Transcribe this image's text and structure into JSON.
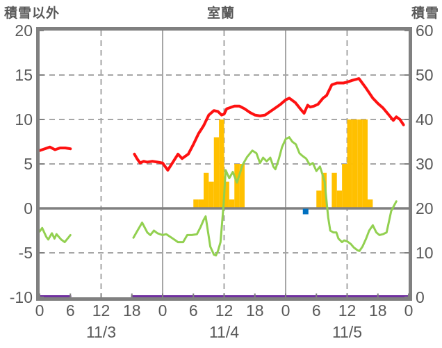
{
  "header": {
    "left_axis_title": "積雪以外",
    "chart_title": "室蘭",
    "right_axis_title": "積雪"
  },
  "colors": {
    "red": "#fe1111",
    "green": "#92d050",
    "orange": "#ffc000",
    "purple": "#7030a0",
    "blue": "#0070c0",
    "grid": "#a6a6a6",
    "axis": "#808080",
    "text": "#595959"
  },
  "chart_data": {
    "type": "line",
    "title": "室蘭",
    "left_axis": {
      "title": "積雪以外",
      "min": -10,
      "max": 20,
      "ticks": [
        20,
        15,
        10,
        5,
        0,
        -5,
        -10
      ]
    },
    "right_axis": {
      "title": "積雪",
      "min": 0,
      "max": 60,
      "ticks": [
        60,
        50,
        40,
        30,
        20,
        10,
        0
      ]
    },
    "x_axis": {
      "range_hours": [
        0,
        72
      ],
      "hour_ticks": [
        0,
        6,
        12,
        18,
        24,
        30,
        36,
        42,
        48,
        54,
        60,
        66,
        72
      ],
      "hour_labels": [
        "0",
        "6",
        "12",
        "18",
        "0",
        "6",
        "12",
        "18",
        "0",
        "6",
        "12",
        "18",
        "0"
      ],
      "date_labels": [
        {
          "label": "11/3",
          "hour": 12
        },
        {
          "label": "11/4",
          "hour": 36
        },
        {
          "label": "11/5",
          "hour": 60
        }
      ],
      "solid_gridline_hours": [
        24,
        48
      ],
      "dashed_gridline_hours": [
        12,
        36,
        60
      ]
    },
    "grid": {
      "dashed_left_values": [
        15,
        10,
        5,
        -5
      ],
      "solid_left_values": [
        0
      ]
    },
    "legend": "none",
    "series": [
      {
        "name": "orange-bars",
        "type": "bar",
        "color_key": "orange",
        "axis": "left",
        "bars": [
          [
            30,
            1
          ],
          [
            31,
            1
          ],
          [
            32,
            4
          ],
          [
            33,
            3
          ],
          [
            34,
            8
          ],
          [
            35,
            10
          ],
          [
            36,
            3
          ],
          [
            37,
            1
          ],
          [
            38,
            5
          ],
          [
            39,
            5
          ],
          [
            54,
            2
          ],
          [
            55,
            4
          ],
          [
            56,
            0
          ],
          [
            57,
            4
          ],
          [
            58,
            2
          ],
          [
            59,
            5
          ],
          [
            60,
            10
          ],
          [
            61,
            10
          ],
          [
            62,
            10
          ],
          [
            63,
            10
          ],
          [
            64,
            1
          ]
        ]
      },
      {
        "name": "purple-baseline",
        "type": "line",
        "color_key": "purple",
        "axis": "right",
        "width": 3,
        "segments": [
          [
            [
              0,
              0
            ],
            [
              6,
              0
            ]
          ],
          [
            [
              18,
              0
            ],
            [
              72,
              0
            ]
          ]
        ]
      },
      {
        "name": "blue-marker",
        "type": "point",
        "color_key": "blue",
        "axis": "left",
        "size": 8,
        "points": [
          [
            51.9,
            -0.35
          ]
        ]
      },
      {
        "name": "green-line",
        "type": "line",
        "color_key": "green",
        "axis": "left",
        "width": 3,
        "segments": [
          [
            [
              0,
              -2.6
            ],
            [
              0.5,
              -2.2
            ],
            [
              1.3,
              -3.2
            ],
            [
              1.7,
              -3.5
            ],
            [
              2.4,
              -2.8
            ],
            [
              2.9,
              -3.4
            ],
            [
              3.3,
              -2.9
            ],
            [
              4.2,
              -3.5
            ],
            [
              4.9,
              -3.8
            ],
            [
              5.6,
              -3.3
            ],
            [
              6,
              -3.0
            ]
          ],
          [
            [
              18.3,
              -3.3
            ],
            [
              19,
              -2.6
            ],
            [
              20,
              -1.6
            ],
            [
              21,
              -2.7
            ],
            [
              21.6,
              -3.0
            ],
            [
              22.3,
              -2.5
            ],
            [
              23,
              -2.8
            ],
            [
              24,
              -3.0
            ],
            [
              24.7,
              -2.9
            ],
            [
              26,
              -3.4
            ],
            [
              27,
              -3.8
            ],
            [
              28,
              -3.8
            ],
            [
              28.8,
              -3.0
            ],
            [
              29.7,
              -3.0
            ],
            [
              30.7,
              -2.9
            ],
            [
              31.4,
              -2.1
            ],
            [
              32,
              -1.3
            ],
            [
              32.4,
              -0.9
            ],
            [
              33.3,
              -4.3
            ],
            [
              34,
              -5.2
            ],
            [
              34.4,
              -5.3
            ],
            [
              34.8,
              -4.8
            ],
            [
              35.3,
              -3.8
            ],
            [
              35.9,
              0.5
            ],
            [
              36.3,
              4.3
            ],
            [
              37,
              3.4
            ],
            [
              37.7,
              4.1
            ],
            [
              38.5,
              2.9
            ],
            [
              39.6,
              4.9
            ],
            [
              40.5,
              5.8
            ],
            [
              41.5,
              6.5
            ],
            [
              42.3,
              6.2
            ],
            [
              43,
              5.1
            ],
            [
              43.6,
              5.7
            ],
            [
              44.3,
              5.3
            ],
            [
              45,
              5.7
            ],
            [
              45.6,
              4.7
            ],
            [
              46,
              4.4
            ],
            [
              46.7,
              5.6
            ],
            [
              47.3,
              6.9
            ],
            [
              48,
              7.8
            ],
            [
              48.7,
              8.0
            ],
            [
              49.3,
              7.5
            ],
            [
              50,
              7.2
            ],
            [
              50.7,
              6.2
            ],
            [
              51.3,
              5.9
            ],
            [
              52,
              5.6
            ],
            [
              52.7,
              4.9
            ],
            [
              53.3,
              5.1
            ],
            [
              54,
              4.2
            ],
            [
              54.7,
              4.7
            ],
            [
              55.2,
              3.8
            ],
            [
              55.6,
              3.0
            ],
            [
              56.3,
              -1.0
            ],
            [
              56.7,
              -2.5
            ],
            [
              57.3,
              -2.7
            ],
            [
              57.9,
              -2.7
            ],
            [
              58.3,
              -3.4
            ],
            [
              59,
              -3.8
            ],
            [
              59.4,
              -3.6
            ],
            [
              60,
              -3.7
            ],
            [
              60.7,
              -4.0
            ],
            [
              61.3,
              -4.4
            ],
            [
              62,
              -4.7
            ],
            [
              62.4,
              -4.8
            ],
            [
              63,
              -4.3
            ],
            [
              63.7,
              -3.4
            ],
            [
              64.3,
              -2.5
            ],
            [
              65,
              -1.9
            ],
            [
              65.7,
              -2.7
            ],
            [
              66.3,
              -3.0
            ],
            [
              67,
              -2.9
            ],
            [
              67.7,
              -2.7
            ],
            [
              68,
              -1.9
            ],
            [
              68.6,
              -0.3
            ],
            [
              69.6,
              0.8
            ]
          ]
        ]
      },
      {
        "name": "red-line",
        "type": "line",
        "color_key": "red",
        "axis": "left",
        "width": 4,
        "segments": [
          [
            [
              0,
              6.5
            ],
            [
              1,
              6.7
            ],
            [
              2,
              6.9
            ],
            [
              3,
              6.6
            ],
            [
              4,
              6.8
            ],
            [
              5,
              6.8
            ],
            [
              6,
              6.7
            ]
          ],
          [
            [
              18.5,
              6.1
            ],
            [
              19,
              5.6
            ],
            [
              19.6,
              5.1
            ],
            [
              20.3,
              5.3
            ],
            [
              21,
              5.2
            ],
            [
              22,
              5.3
            ],
            [
              23,
              5.2
            ],
            [
              24,
              5.1
            ],
            [
              25,
              4.3
            ],
            [
              26,
              5.2
            ],
            [
              27,
              6.1
            ],
            [
              27.8,
              5.6
            ],
            [
              29,
              6.1
            ],
            [
              30,
              7.2
            ],
            [
              31,
              8.4
            ],
            [
              32,
              9.3
            ],
            [
              33,
              10.5
            ],
            [
              34,
              11.0
            ],
            [
              34.8,
              10.9
            ],
            [
              35.5,
              10.5
            ],
            [
              36,
              10.6
            ],
            [
              36.5,
              11.2
            ],
            [
              37,
              11.3
            ],
            [
              38,
              11.5
            ],
            [
              39,
              11.5
            ],
            [
              40,
              11.2
            ],
            [
              41,
              10.8
            ],
            [
              42,
              10.5
            ],
            [
              43,
              10.4
            ],
            [
              44,
              10.5
            ],
            [
              45,
              10.9
            ],
            [
              46,
              11.3
            ],
            [
              47,
              11.7
            ],
            [
              48,
              12.2
            ],
            [
              48.7,
              12.4
            ],
            [
              49.9,
              11.9
            ],
            [
              51,
              11.1
            ],
            [
              51.6,
              10.7
            ],
            [
              52.3,
              11.6
            ],
            [
              52.8,
              11.4
            ],
            [
              53.5,
              11.5
            ],
            [
              54.3,
              11.7
            ],
            [
              55.3,
              12.4
            ],
            [
              56,
              12.7
            ],
            [
              57,
              13.9
            ],
            [
              58,
              14.1
            ],
            [
              58.6,
              14.1
            ],
            [
              59.3,
              14.1
            ],
            [
              60,
              14.2
            ],
            [
              61,
              14.4
            ],
            [
              62.3,
              14.6
            ],
            [
              63.6,
              13.6
            ],
            [
              65,
              12.4
            ],
            [
              66,
              11.8
            ],
            [
              67,
              11.3
            ],
            [
              68.3,
              10.4
            ],
            [
              69,
              9.9
            ],
            [
              69.6,
              10.3
            ],
            [
              70.3,
              10.0
            ],
            [
              71,
              9.4
            ]
          ]
        ]
      }
    ]
  }
}
